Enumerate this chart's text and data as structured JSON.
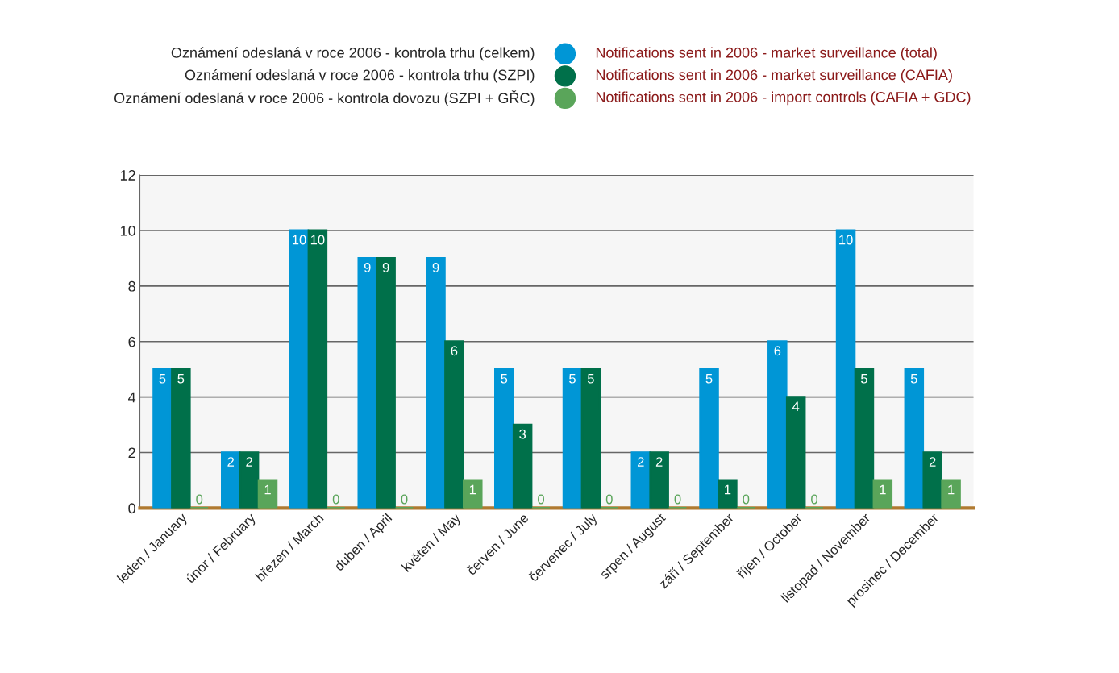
{
  "chart_data": {
    "type": "bar",
    "categories": [
      "leden / January",
      "únor / February",
      "březen / March",
      "duben / April",
      "květen / May",
      "červen / June",
      "červenec / July",
      "srpen / August",
      "září / September",
      "říjen / October",
      "listopad / November",
      "prosinec / December"
    ],
    "series": [
      {
        "name": "Oznámení odeslaná v roce 2006 - kontrola trhu (celkem)",
        "color": "#0096d6",
        "values": [
          5,
          2,
          10,
          9,
          9,
          5,
          5,
          2,
          5,
          6,
          10,
          5
        ]
      },
      {
        "name": "Oznámení odeslaná v roce 2006 - kontrola trhu (SZPI)",
        "color": "#00704a",
        "values": [
          5,
          2,
          10,
          9,
          6,
          3,
          5,
          2,
          1,
          4,
          5,
          2
        ]
      },
      {
        "name": "Oznámení odeslaná v roce 2006 - kontrola dovozu (SZPI + GŘC)",
        "color": "#5aa55a",
        "values": [
          0,
          1,
          0,
          0,
          1,
          0,
          0,
          0,
          0,
          0,
          1,
          1
        ]
      }
    ],
    "annotations": [
      "Notifications sent in 2006 - market surveillance (total)",
      "Notifications sent in 2006 - market surveillance (CAFIA)",
      "Notifications sent in 2006 - import controls (CAFIA + GDC)"
    ],
    "ylim": [
      0,
      12
    ],
    "yticks": [
      0,
      2,
      4,
      6,
      8,
      10,
      12
    ],
    "grid": "y",
    "legend": "top",
    "data_labels": true
  }
}
